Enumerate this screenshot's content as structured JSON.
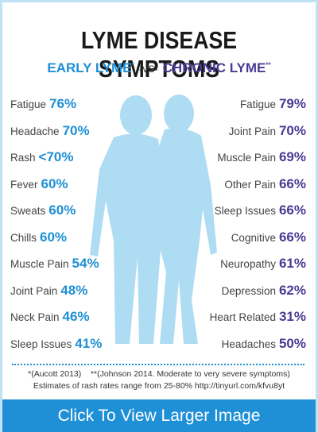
{
  "header": {
    "title": "LYME DISEASE SYMPTOMS",
    "early": "EARLY LYME",
    "early_mark": "*",
    "vs": "-VS-",
    "chronic": "CHRONIC LYME",
    "chronic_mark": "**"
  },
  "early_lyme": [
    {
      "label": "Fatigue",
      "value": "76%"
    },
    {
      "label": "Headache",
      "value": "70%"
    },
    {
      "label": "Rash",
      "value": "<70%"
    },
    {
      "label": "Fever",
      "value": "60%"
    },
    {
      "label": "Sweats",
      "value": "60%"
    },
    {
      "label": "Chills",
      "value": "60%"
    },
    {
      "label": "Muscle Pain",
      "value": "54%"
    },
    {
      "label": "Joint Pain",
      "value": "48%"
    },
    {
      "label": "Neck Pain",
      "value": "46%"
    },
    {
      "label": "Sleep Issues",
      "value": "41%"
    }
  ],
  "chronic_lyme": [
    {
      "label": "Fatigue",
      "value": "79%"
    },
    {
      "label": "Joint Pain",
      "value": "70%"
    },
    {
      "label": "Muscle Pain",
      "value": "69%"
    },
    {
      "label": "Other Pain",
      "value": "66%"
    },
    {
      "label": "Sleep Issues",
      "value": "66%"
    },
    {
      "label": "Cognitive",
      "value": "66%"
    },
    {
      "label": "Neuropathy",
      "value": "61%"
    },
    {
      "label": "Depression",
      "value": "62%"
    },
    {
      "label": "Heart Related",
      "value": "31%"
    },
    {
      "label": "Headaches",
      "value": "50%"
    }
  ],
  "footnotes": {
    "early": "*(Aucott 2013)",
    "chronic": "**(Johnson 2014. Moderate to very severe symptoms)",
    "rash": "Estimates of rash rates range from 25-80% http://tinyurl.com/kfvu8yt"
  },
  "button": "Click To View Larger Image"
}
